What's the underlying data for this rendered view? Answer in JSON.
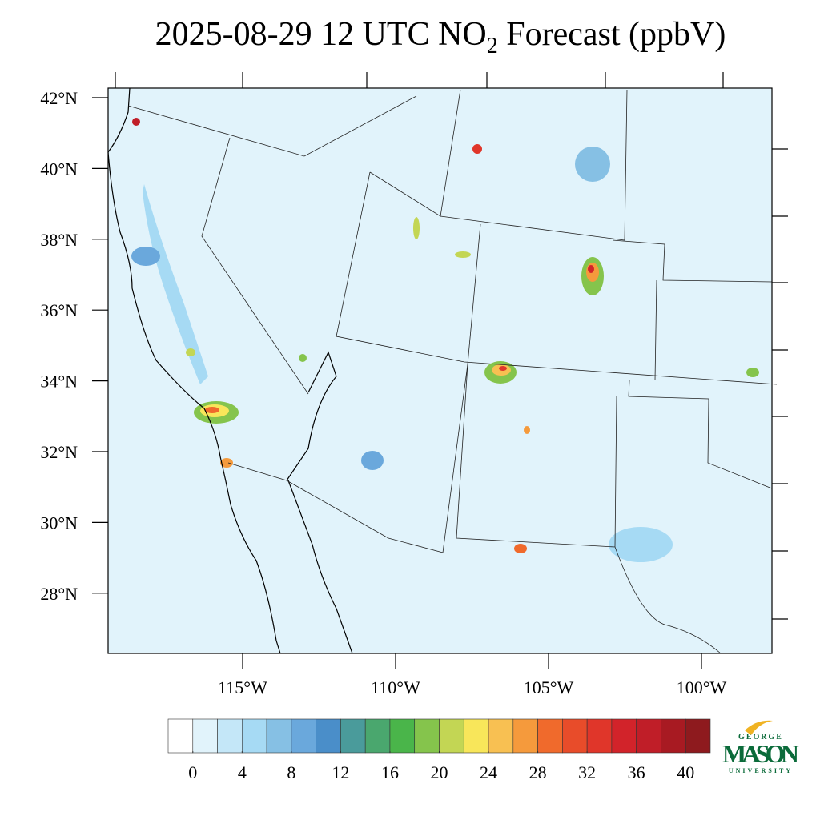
{
  "map": {
    "title_parts": [
      "2025-08-29 12 UTC NO",
      "2",
      " Forecast (ppbV)"
    ],
    "lat_ticks": [
      {
        "value": 42,
        "label": "42°N"
      },
      {
        "value": 40,
        "label": "40°N"
      },
      {
        "value": 38,
        "label": "38°N"
      },
      {
        "value": 36,
        "label": "36°N"
      },
      {
        "value": 34,
        "label": "34°N"
      },
      {
        "value": 32,
        "label": "32°N"
      },
      {
        "value": 30,
        "label": "30°N"
      },
      {
        "value": 28,
        "label": "28°N"
      }
    ],
    "lon_ticks": [
      {
        "value": -115,
        "label": "115°W"
      },
      {
        "value": -110,
        "label": "110°W"
      },
      {
        "value": -105,
        "label": "105°W"
      },
      {
        "value": -100,
        "label": "100°W"
      }
    ],
    "colorbar": {
      "lim": [
        -2,
        42
      ],
      "ticks": [
        0,
        4,
        8,
        12,
        16,
        20,
        24,
        28,
        32,
        36,
        40
      ],
      "colors": [
        "#ffffff",
        "#e1f3fb",
        "#c4e7f8",
        "#a6daf4",
        "#86c0e4",
        "#6aa8dc",
        "#4a8ec9",
        "#4a9b9b",
        "#4aa76e",
        "#4ab54a",
        "#85c44c",
        "#c3d654",
        "#f8e65a",
        "#f8c052",
        "#f59a3c",
        "#f06a2c",
        "#e84c2a",
        "#e0362a",
        "#d2232a",
        "#c01e28",
        "#a81a22",
        "#8e1a1e"
      ]
    },
    "logo": {
      "top": "GEORGE",
      "main": "MASON",
      "bottom": "UNIVERSITY"
    }
  }
}
